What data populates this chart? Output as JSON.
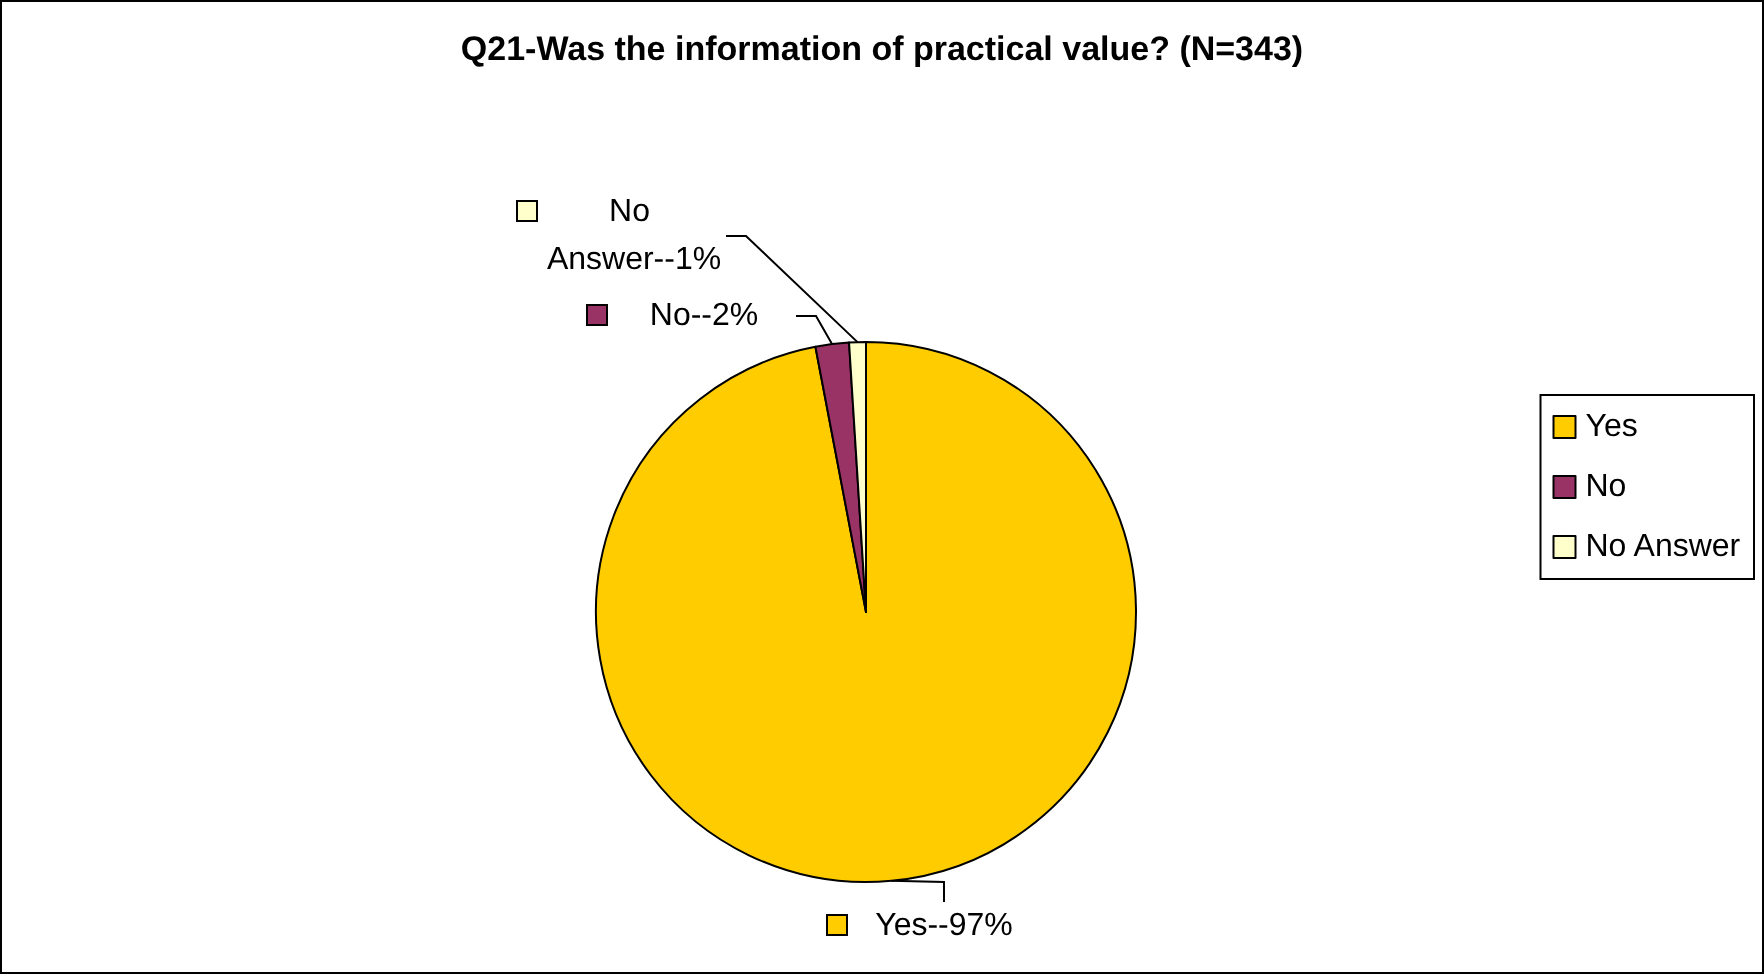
{
  "chart_data": {
    "type": "pie",
    "title": "Q21-Was the information of practical value? (N=343)",
    "categories": [
      "Yes",
      "No",
      "No Answer"
    ],
    "values": [
      97,
      2,
      1
    ],
    "colors": [
      "#ffcc00",
      "#993366",
      "#ffffcc"
    ],
    "value_labels": [
      "Yes--97%",
      "No--2%",
      "No Answer--1%"
    ],
    "legend": "right"
  }
}
